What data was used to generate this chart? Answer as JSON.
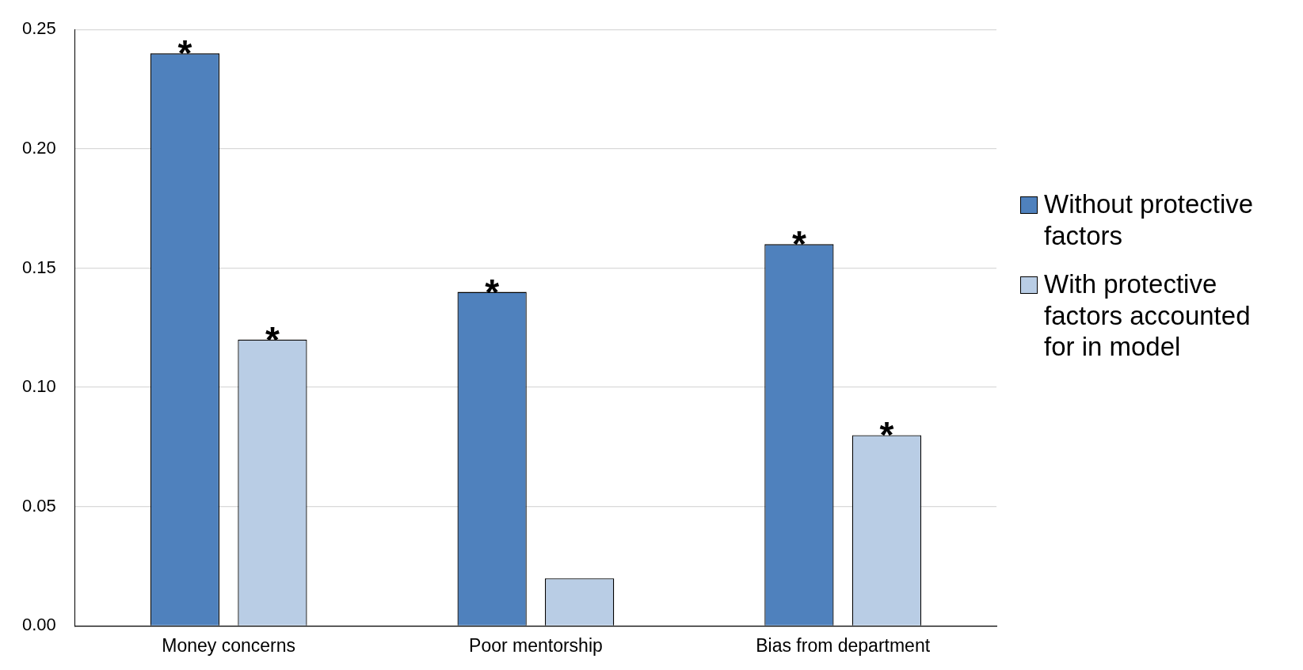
{
  "chart_data": {
    "type": "bar",
    "categories": [
      "Money concerns",
      "Poor mentorship",
      "Bias from department"
    ],
    "series": [
      {
        "name": "Without protective factors",
        "color": "#4f81bd",
        "values": [
          0.24,
          0.14,
          0.16
        ],
        "value_labels": [
          "*",
          "*",
          "*"
        ]
      },
      {
        "name": "With protective factors accounted for in model",
        "color": "#b9cde5",
        "values": [
          0.12,
          0.02,
          0.08
        ],
        "value_labels": [
          "*",
          null,
          "*"
        ]
      }
    ],
    "ylim": [
      0,
      0.25
    ],
    "yticks": [
      {
        "value": 0,
        "label": "0.00"
      },
      {
        "value": 0.05,
        "label": "0.05"
      },
      {
        "value": 0.1,
        "label": "0.10"
      },
      {
        "value": 0.15,
        "label": "0.15"
      },
      {
        "value": 0.2,
        "label": "0.20"
      },
      {
        "value": 0.25,
        "label": "0.25"
      }
    ],
    "grid": "y",
    "legend": "right"
  }
}
